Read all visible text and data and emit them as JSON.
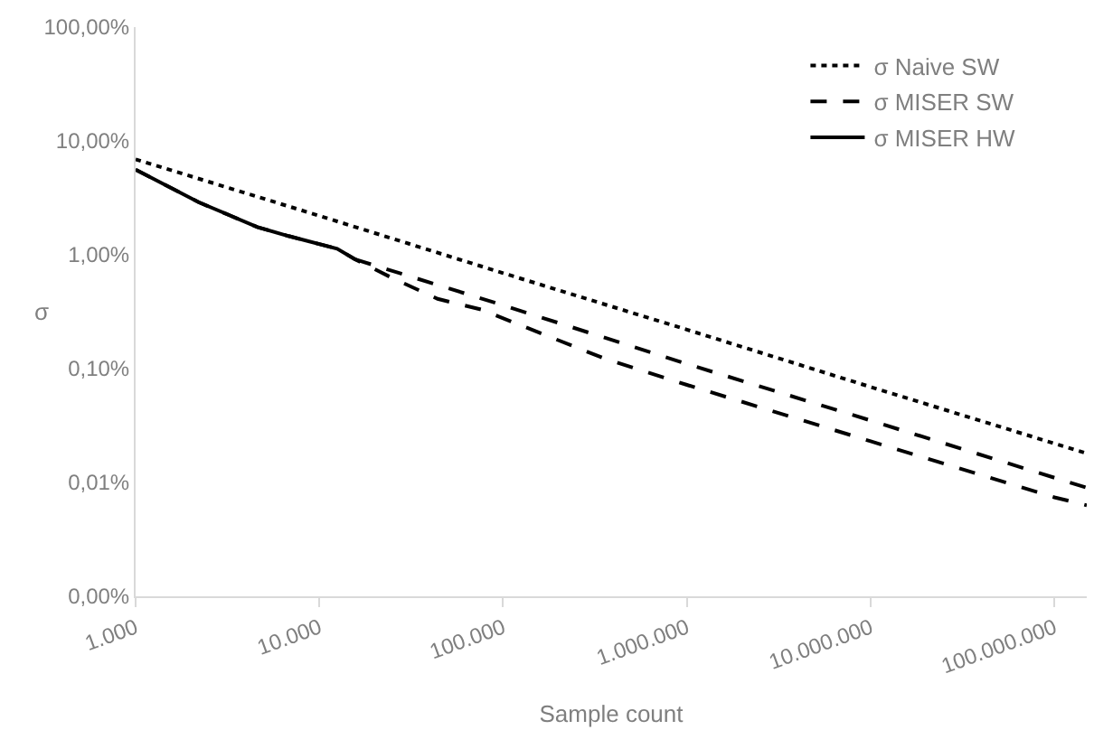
{
  "chart_data": {
    "type": "line",
    "xlabel": "Sample count",
    "ylabel": "σ",
    "log": "xy",
    "legend": "top right",
    "grid": false,
    "marker": "none",
    "xlim": [
      1000,
      150000000
    ],
    "xticks": [
      {
        "value": 1000,
        "label": "1.000"
      },
      {
        "value": 10000,
        "label": "10.000"
      },
      {
        "value": 100000,
        "label": "100.000"
      },
      {
        "value": 1000000,
        "label": "1.000.000"
      },
      {
        "value": 10000000,
        "label": "10.000.000"
      },
      {
        "value": 100000000,
        "label": "100.000.000"
      }
    ],
    "ylim": [
      0.001,
      100
    ],
    "yticks": [
      {
        "value": 0.001,
        "label": "0,00%"
      },
      {
        "value": 0.01,
        "label": "0,01%"
      },
      {
        "value": 0.1,
        "label": "0,10%"
      },
      {
        "value": 1,
        "label": "1,00%"
      },
      {
        "value": 10,
        "label": "10,00%"
      },
      {
        "value": 100,
        "label": "100,00%"
      }
    ],
    "series": [
      {
        "name": "σ Naive SW",
        "color": "#000000",
        "line_style": "dotted",
        "x": [
          1000,
          10000,
          100000,
          1000000,
          10000000,
          100000000,
          150000000
        ],
        "values": [
          6.9,
          2.2,
          0.69,
          0.22,
          0.069,
          0.022,
          0.018
        ]
      },
      {
        "name": "σ MISER SW",
        "color": "#000000",
        "line_style": "dashed",
        "x": [
          1000,
          2200,
          4600,
          6800,
          12500,
          15700,
          24700,
          44000,
          76000,
          354000,
          1000000,
          10000000,
          100000000,
          150000000
        ],
        "values": [
          5.6,
          2.9,
          1.75,
          1.46,
          1.13,
          0.91,
          0.63,
          0.41,
          0.33,
          0.123,
          0.072,
          0.023,
          0.0074,
          0.0063
        ]
      },
      {
        "name": "σ MISER HW",
        "color": "#000000",
        "line_style": "solid",
        "x": [
          1000,
          2200,
          4600,
          6800,
          12500,
          15700
        ],
        "values": [
          5.6,
          2.9,
          1.75,
          1.46,
          1.13,
          0.91
        ]
      },
      {
        "color": "#000000",
        "line_style": "dashed",
        "x": [
          15700,
          100000,
          1000000,
          10000000,
          100000000,
          150000000
        ],
        "values": [
          0.91,
          0.36,
          0.11,
          0.035,
          0.011,
          0.009
        ]
      }
    ]
  }
}
